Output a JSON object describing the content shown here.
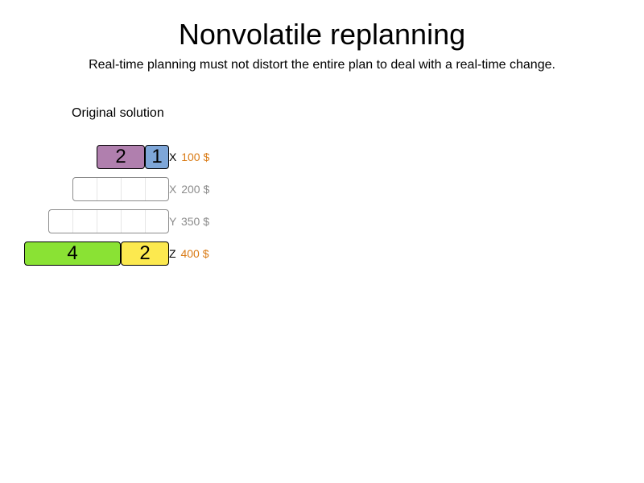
{
  "header": {
    "title": "Nonvolatile replanning",
    "subtitle": "Real-time planning must not distort the entire plan to deal with a real-time change."
  },
  "solution": {
    "label": "Original solution",
    "machines": [
      {
        "name": "X",
        "cost": "100 $",
        "active": true,
        "processes": [
          {
            "size": "2",
            "color": "#b07fae"
          },
          {
            "size": "1",
            "color": "#7ea6d8"
          }
        ]
      },
      {
        "name": "X",
        "cost": "200 $",
        "active": false,
        "processes": []
      },
      {
        "name": "Y",
        "cost": "350 $",
        "active": false,
        "processes": []
      },
      {
        "name": "Z",
        "cost": "400 $",
        "active": true,
        "processes": [
          {
            "size": "4",
            "color": "#8ae234"
          },
          {
            "size": "2",
            "color": "#fce94f"
          }
        ]
      }
    ]
  },
  "colors": {
    "active_cost": "#d97a14",
    "idle_text": "#8c8c8c"
  }
}
